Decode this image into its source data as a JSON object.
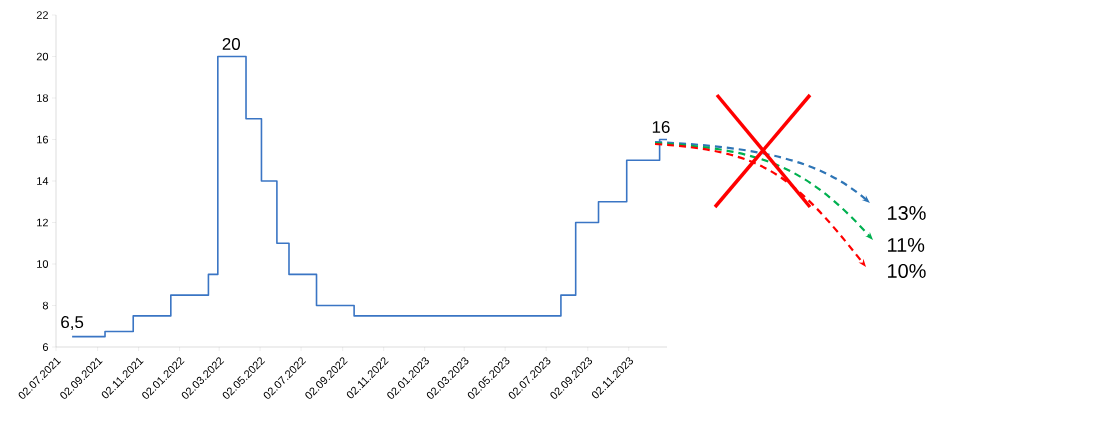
{
  "chart_data": {
    "type": "step",
    "x": [
      "2021-07-26",
      "2021-09-13",
      "2021-10-25",
      "2021-12-20",
      "2022-02-14",
      "2022-02-28",
      "2022-04-11",
      "2022-05-04",
      "2022-05-27",
      "2022-06-14",
      "2022-07-25",
      "2022-09-19",
      "2023-07-24",
      "2023-08-15",
      "2023-09-18",
      "2023-10-30",
      "2023-12-18",
      "2023-12-29"
    ],
    "values": [
      6.5,
      6.75,
      7.5,
      8.5,
      9.5,
      20,
      17,
      14,
      11,
      9.5,
      8,
      7.5,
      8.5,
      12,
      13,
      15,
      16,
      16
    ],
    "color": "#3a75c4",
    "xlim": [
      "2021-07-02",
      "2023-12-29"
    ],
    "ylim": [
      6,
      22
    ],
    "yticks": [
      6,
      8,
      10,
      12,
      14,
      16,
      18,
      20,
      22
    ],
    "xticks": [
      {
        "value": "2021-07-02",
        "label": "02.07.2021"
      },
      {
        "value": "2021-09-02",
        "label": "02.09.2021"
      },
      {
        "value": "2021-11-02",
        "label": "02.11.2021"
      },
      {
        "value": "2022-01-02",
        "label": "02.01.2022"
      },
      {
        "value": "2022-03-02",
        "label": "02.03.2022"
      },
      {
        "value": "2022-05-02",
        "label": "02.05.2022"
      },
      {
        "value": "2022-07-02",
        "label": "02.07.2022"
      },
      {
        "value": "2022-09-02",
        "label": "02.09.2022"
      },
      {
        "value": "2022-11-02",
        "label": "02.11.2022"
      },
      {
        "value": "2023-01-02",
        "label": "02.01.2023"
      },
      {
        "value": "2023-03-02",
        "label": "02.03.2023"
      },
      {
        "value": "2023-05-02",
        "label": "02.05.2023"
      },
      {
        "value": "2023-07-02",
        "label": "02.07.2023"
      },
      {
        "value": "2023-09-02",
        "label": "02.09.2023"
      },
      {
        "value": "2023-11-02",
        "label": "02.11.2023"
      }
    ],
    "annotations": [
      {
        "text": "6,5",
        "x": "2021-07-26",
        "y": 6.5
      },
      {
        "text": "20",
        "x": "2022-03-20",
        "y": 20
      },
      {
        "text": "16",
        "x": "2023-12-20",
        "y": 16
      },
      "13%",
      "11%",
      "10%"
    ]
  }
}
